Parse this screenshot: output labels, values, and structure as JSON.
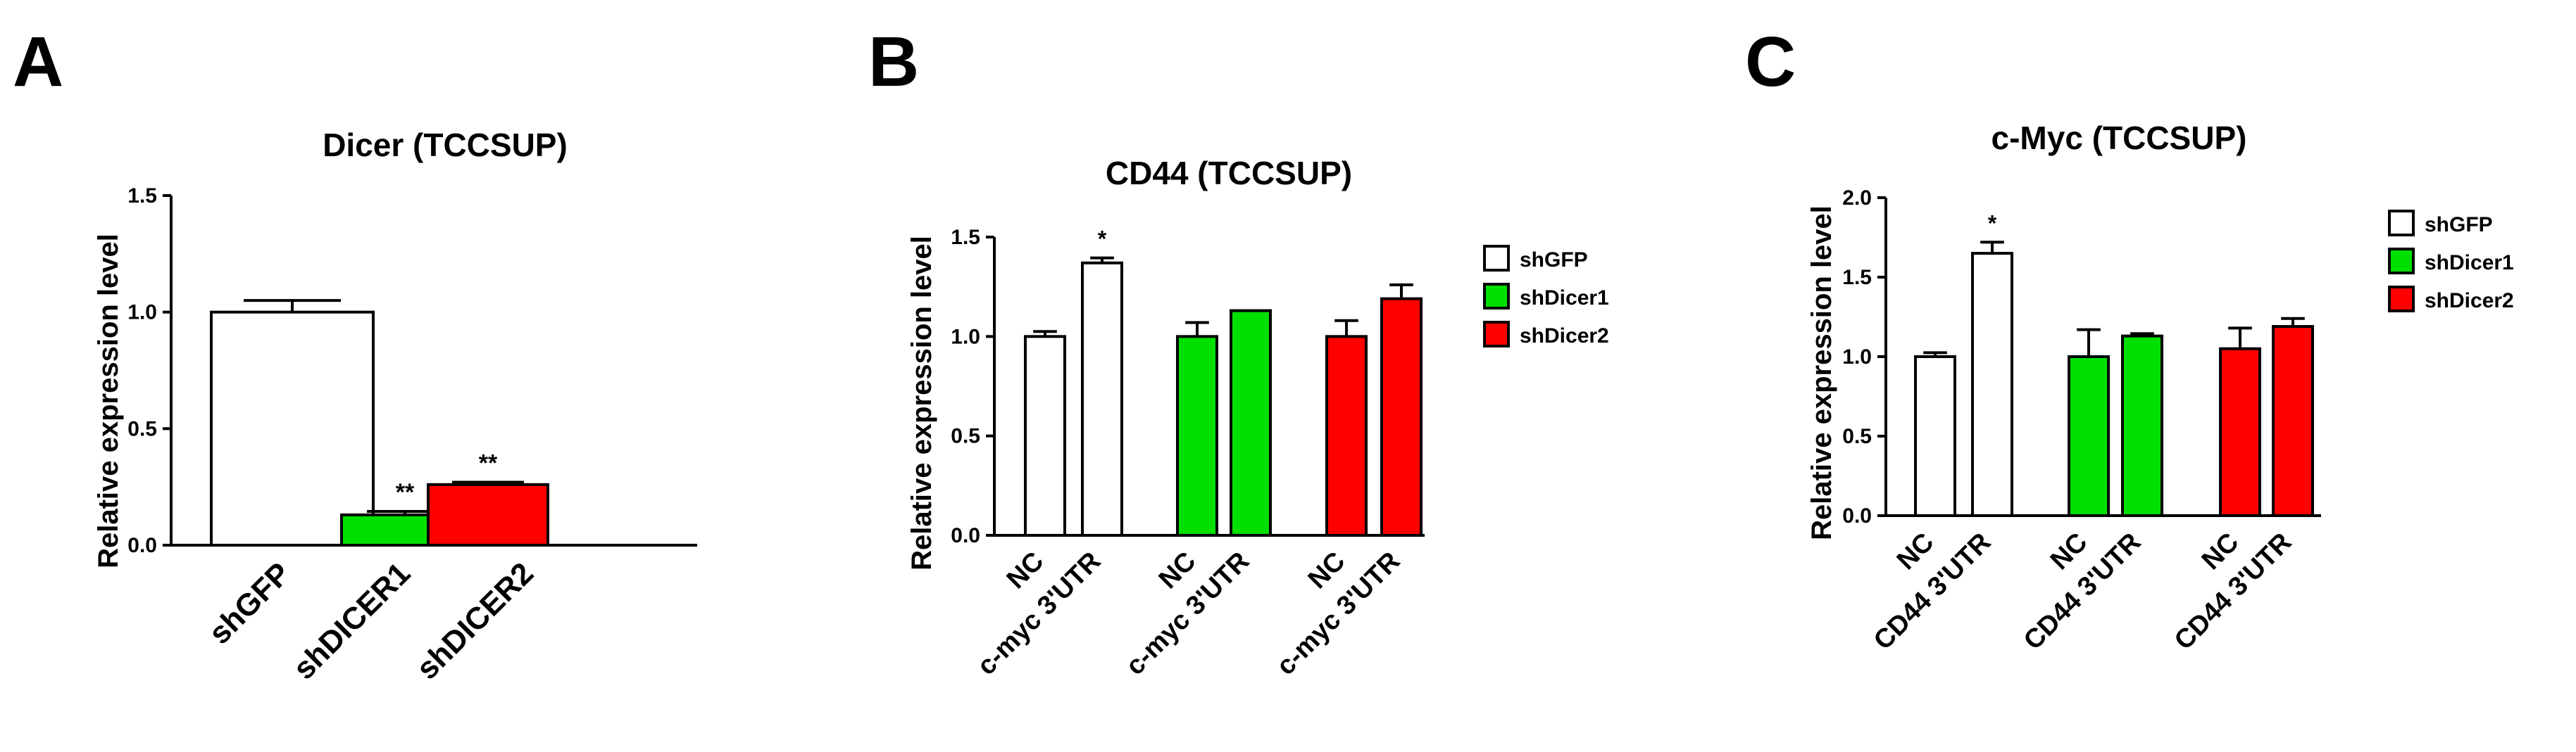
{
  "panels": [
    {
      "letter": "A",
      "chart_data": {
        "type": "bar",
        "title": "Dicer (TCCSUP)",
        "xlabel": "",
        "ylabel": "Relative expression level",
        "ylim": [
          0,
          1.5
        ],
        "yticks": [
          "0.0",
          "0.5",
          "1.0",
          "1.5"
        ],
        "categories": [
          "shGFP",
          "shDICER1",
          "shDICER2"
        ],
        "values": [
          1.0,
          0.13,
          0.26
        ],
        "errors": [
          0.05,
          0.015,
          0.01
        ],
        "colors": [
          "#ffffff",
          "#00e000",
          "#ff0000"
        ],
        "significance": [
          "",
          "**",
          "**"
        ],
        "grid": false,
        "legend": null
      }
    },
    {
      "letter": "B",
      "chart_data": {
        "type": "bar",
        "title": "CD44 (TCCSUP)",
        "xlabel": "",
        "ylabel": "Relative expression level",
        "ylim": [
          0,
          1.5
        ],
        "yticks": [
          "0.0",
          "0.5",
          "1.0",
          "1.5"
        ],
        "categories": [
          "NC",
          "c-myc 3'UTR",
          "NC",
          "c-myc 3'UTR",
          "NC",
          "c-myc 3'UTR"
        ],
        "values": [
          1.0,
          1.37,
          1.0,
          1.13,
          1.0,
          1.19
        ],
        "errors": [
          0.025,
          0.025,
          0.07,
          0.0,
          0.08,
          0.07
        ],
        "groups": [
          "shGFP",
          "shGFP",
          "shDicer1",
          "shDicer1",
          "shDicer2",
          "shDicer2"
        ],
        "colors": [
          "#ffffff",
          "#ffffff",
          "#00e000",
          "#00e000",
          "#ff0000",
          "#ff0000"
        ],
        "significance": [
          "",
          "*",
          "",
          "",
          "",
          ""
        ],
        "grid": false,
        "legend": {
          "position": "right",
          "entries": [
            {
              "name": "shGFP",
              "color": "#ffffff"
            },
            {
              "name": "shDicer1",
              "color": "#00e000"
            },
            {
              "name": "shDicer2",
              "color": "#ff0000"
            }
          ]
        }
      }
    },
    {
      "letter": "C",
      "chart_data": {
        "type": "bar",
        "title": "c-Myc (TCCSUP)",
        "xlabel": "",
        "ylabel": "Relative expression level",
        "ylim": [
          0,
          2.0
        ],
        "yticks": [
          "0.0",
          "0.5",
          "1.0",
          "1.5",
          "2.0"
        ],
        "categories": [
          "NC",
          "CD44 3'UTR",
          "NC",
          "CD44 3'UTR",
          "NC",
          "CD44 3'UTR"
        ],
        "values": [
          1.0,
          1.65,
          1.0,
          1.13,
          1.05,
          1.19
        ],
        "errors": [
          0.025,
          0.07,
          0.17,
          0.015,
          0.13,
          0.05
        ],
        "groups": [
          "shGFP",
          "shGFP",
          "shDicer1",
          "shDicer1",
          "shDicer2",
          "shDicer2"
        ],
        "colors": [
          "#ffffff",
          "#ffffff",
          "#00e000",
          "#00e000",
          "#ff0000",
          "#ff0000"
        ],
        "significance": [
          "",
          "*",
          "",
          "",
          "",
          ""
        ],
        "grid": false,
        "legend": {
          "position": "right",
          "entries": [
            {
              "name": "shGFP",
              "color": "#ffffff"
            },
            {
              "name": "shDicer1",
              "color": "#00e000"
            },
            {
              "name": "shDicer2",
              "color": "#ff0000"
            }
          ]
        }
      }
    }
  ]
}
